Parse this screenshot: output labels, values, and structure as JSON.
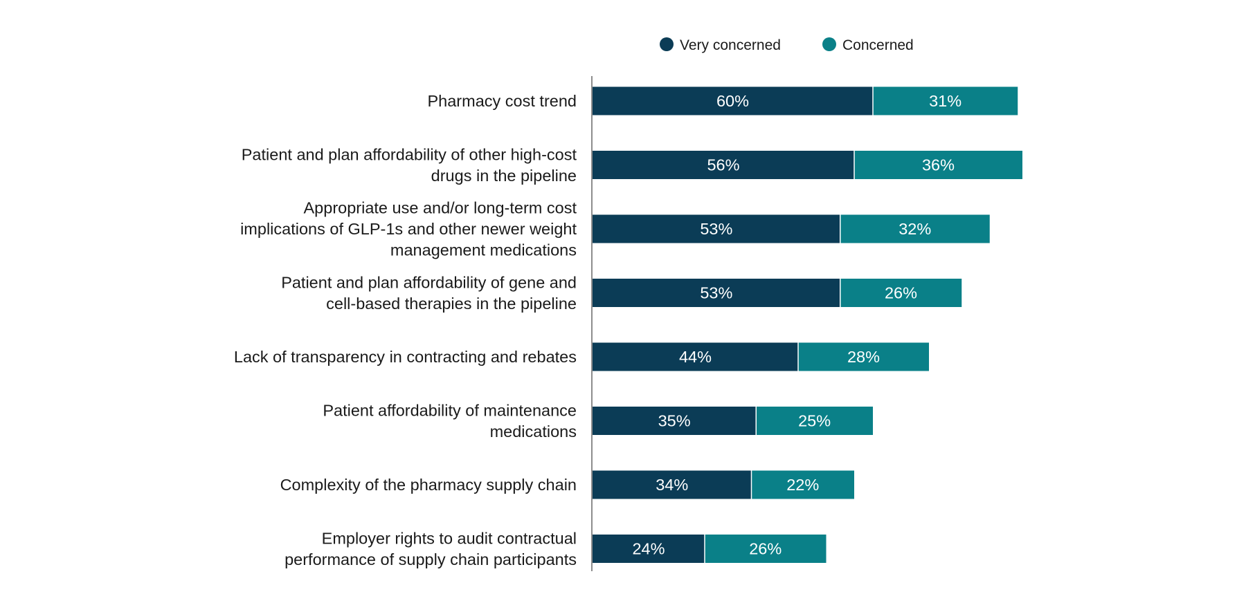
{
  "chart_data": {
    "type": "bar",
    "orientation": "horizontal",
    "stacked": true,
    "title": "",
    "xlabel": "",
    "ylabel": "",
    "xlim": [
      0,
      100
    ],
    "grid": false,
    "legend_position": "top",
    "value_suffix": "%",
    "categories": [
      "Pharmacy cost trend",
      "Patient and plan affordability of other high-cost drugs in the pipeline",
      "Appropriate use and/or long-term cost implications of GLP-1s and other newer weight management medications",
      "Patient and plan affordability of gene and cell-based therapies in the pipeline",
      "Lack of transparency in contracting and rebates",
      "Patient affordability of maintenance medications",
      "Complexity of the pharmacy supply chain",
      "Employer rights to audit contractual performance of supply chain participants"
    ],
    "category_lines": [
      [
        "Pharmacy cost trend"
      ],
      [
        "Patient and plan affordability of other high-cost",
        "drugs in the pipeline"
      ],
      [
        "Appropriate use and/or long-term cost",
        "implications of GLP-1s and other newer weight",
        "management medications"
      ],
      [
        "Patient and plan affordability of gene and",
        "cell-based therapies in the pipeline"
      ],
      [
        "Lack of transparency in contracting and rebates"
      ],
      [
        "Patient affordability of maintenance",
        "medications"
      ],
      [
        "Complexity of the pharmacy supply chain"
      ],
      [
        "Employer rights to audit contractual",
        "performance of supply chain participants"
      ]
    ],
    "series": [
      {
        "name": "Very concerned",
        "color": "#0b3c56",
        "values": [
          60,
          56,
          53,
          53,
          44,
          35,
          34,
          24
        ]
      },
      {
        "name": "Concerned",
        "color": "#0a8088",
        "values": [
          31,
          36,
          32,
          26,
          28,
          25,
          22,
          26
        ]
      }
    ]
  },
  "colors": {
    "axis": "#666666",
    "label_text": "#1a1a1a",
    "bar_label_text": "#ffffff",
    "segment_divider": "#ffffff"
  }
}
